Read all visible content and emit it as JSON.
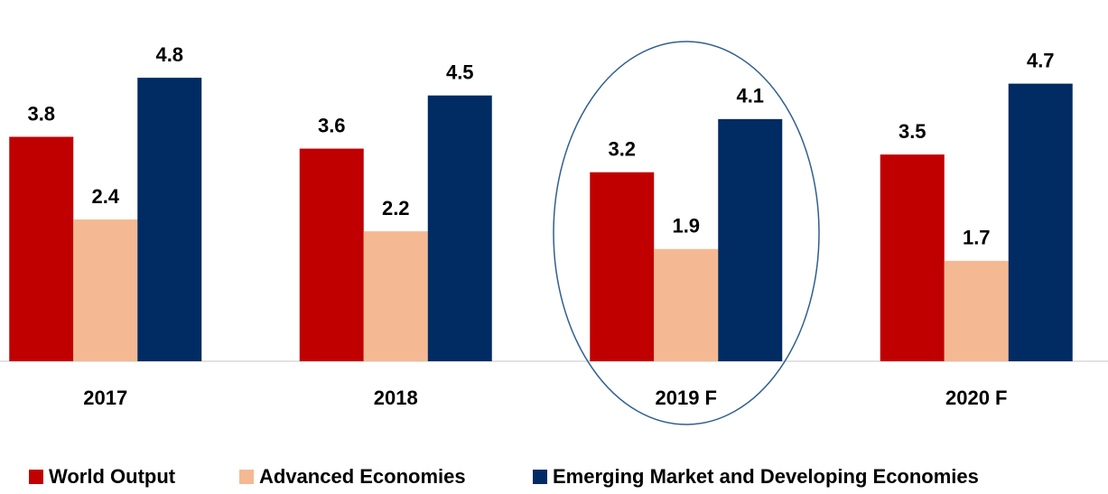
{
  "chart_data": {
    "type": "bar",
    "categories": [
      "2017",
      "2018",
      "2019 F",
      "2020 F"
    ],
    "series": [
      {
        "name": "World Output",
        "color": "#c00000",
        "values": [
          3.8,
          3.6,
          3.2,
          3.5
        ]
      },
      {
        "name": "Advanced Economies",
        "color": "#f4b992",
        "values": [
          2.4,
          2.2,
          1.9,
          1.7
        ]
      },
      {
        "name": "Emerging Market and Developing Economies",
        "color": "#002b63",
        "values": [
          4.8,
          4.5,
          4.1,
          4.7
        ]
      }
    ],
    "ylim": [
      0,
      6
    ],
    "grid": false,
    "legend": "bottom"
  }
}
